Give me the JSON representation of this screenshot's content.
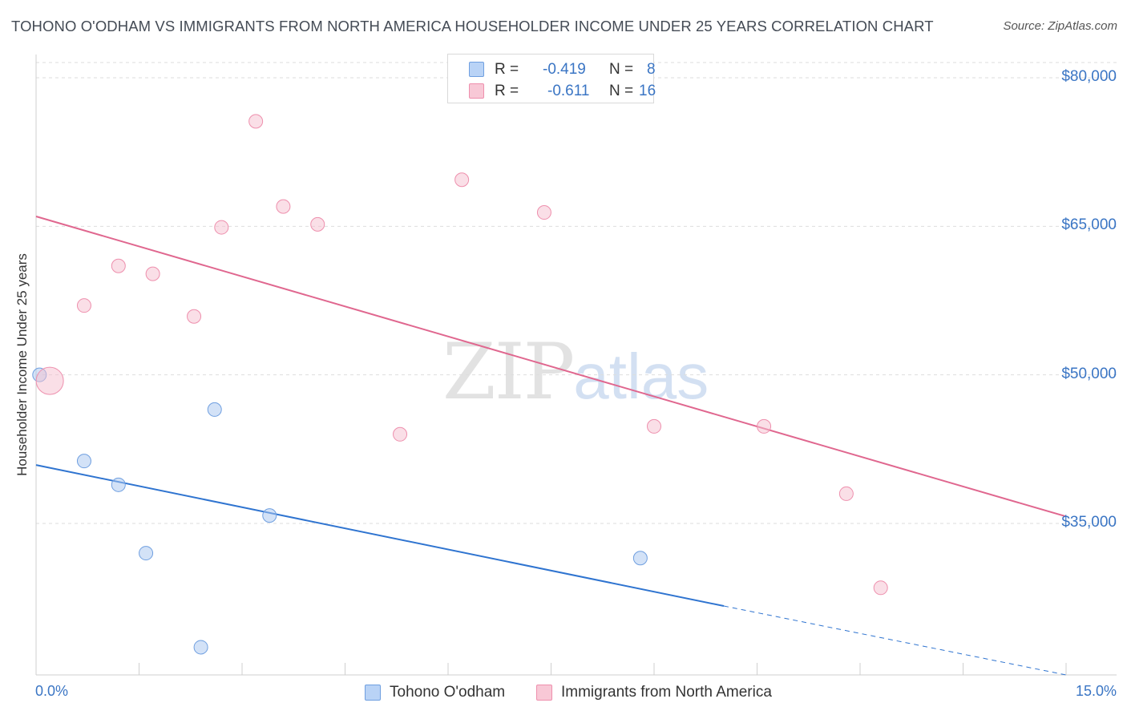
{
  "title": "TOHONO O'ODHAM VS IMMIGRANTS FROM NORTH AMERICA HOUSEHOLDER INCOME UNDER 25 YEARS CORRELATION CHART",
  "source": "Source: ZipAtlas.com",
  "watermark": {
    "zip": "ZIP",
    "atlas": "atlas"
  },
  "legend_top": [
    {
      "r_label": "R =",
      "r_value": "-0.419",
      "n_label": "N =",
      "n_value": "8"
    },
    {
      "r_label": "R =",
      "r_value": "-0.611",
      "n_label": "N =",
      "n_value": "16"
    }
  ],
  "chart_data": {
    "type": "scatter",
    "title": "TOHONO O'ODHAM VS IMMIGRANTS FROM NORTH AMERICA HOUSEHOLDER INCOME UNDER 25 YEARS CORRELATION CHART",
    "xlabel": "",
    "ylabel": "Householder Income Under 25 years",
    "xlim": [
      0,
      15
    ],
    "ylim": [
      20000,
      83000
    ],
    "x_tick_labels": [
      "0.0%",
      "15.0%"
    ],
    "y_ticks": [
      35000,
      50000,
      65000,
      80000
    ],
    "y_tick_labels": [
      "$35,000",
      "$50,000",
      "$65,000",
      "$80,000"
    ],
    "colors": {
      "tohono": "#a8c6f0",
      "tohono_edge": "#6f9fe0",
      "tohono_line": "#2f74d0",
      "immig": "#f6bfd0",
      "immig_edge": "#ee8fad",
      "immig_line": "#e0678f"
    },
    "series": [
      {
        "name": "Tohono O'odham",
        "R": -0.419,
        "N": 8,
        "points": [
          {
            "x": 0.05,
            "y": 50000,
            "big": false
          },
          {
            "x": 0.7,
            "y": 41300,
            "big": false
          },
          {
            "x": 1.2,
            "y": 38900,
            "big": false
          },
          {
            "x": 1.6,
            "y": 32000,
            "big": false
          },
          {
            "x": 2.4,
            "y": 22500,
            "big": false
          },
          {
            "x": 2.6,
            "y": 46500,
            "big": false
          },
          {
            "x": 3.4,
            "y": 35800,
            "big": false
          },
          {
            "x": 8.8,
            "y": 31500,
            "big": false
          }
        ],
        "trend": {
          "x0": 0,
          "y0": 40900,
          "x1": 10,
          "y1": 28500,
          "dash_to_x": 15,
          "dash_to_y": 22300
        }
      },
      {
        "name": "Immigrants from North America",
        "R": -0.611,
        "N": 16,
        "points": [
          {
            "x": 0.2,
            "y": 49400,
            "big": true
          },
          {
            "x": 0.7,
            "y": 57000,
            "big": false
          },
          {
            "x": 1.2,
            "y": 61000,
            "big": false
          },
          {
            "x": 1.7,
            "y": 60200,
            "big": false
          },
          {
            "x": 2.3,
            "y": 55900,
            "big": false
          },
          {
            "x": 2.7,
            "y": 64900,
            "big": false
          },
          {
            "x": 3.2,
            "y": 75600,
            "big": false
          },
          {
            "x": 3.6,
            "y": 67000,
            "big": false
          },
          {
            "x": 4.1,
            "y": 65200,
            "big": false
          },
          {
            "x": 5.3,
            "y": 44000,
            "big": false
          },
          {
            "x": 6.2,
            "y": 69700,
            "big": false
          },
          {
            "x": 7.4,
            "y": 66400,
            "big": false
          },
          {
            "x": 9.0,
            "y": 44800,
            "big": false
          },
          {
            "x": 10.6,
            "y": 44800,
            "big": false
          },
          {
            "x": 11.8,
            "y": 38000,
            "big": false
          },
          {
            "x": 12.3,
            "y": 28500,
            "big": false
          }
        ],
        "trend": {
          "x0": 0,
          "y0": 66000,
          "x1": 15,
          "y1": 35700
        }
      }
    ]
  },
  "legend_bottom": [
    {
      "label": "Tohono O'odham"
    },
    {
      "label": "Immigrants from North America"
    }
  ]
}
